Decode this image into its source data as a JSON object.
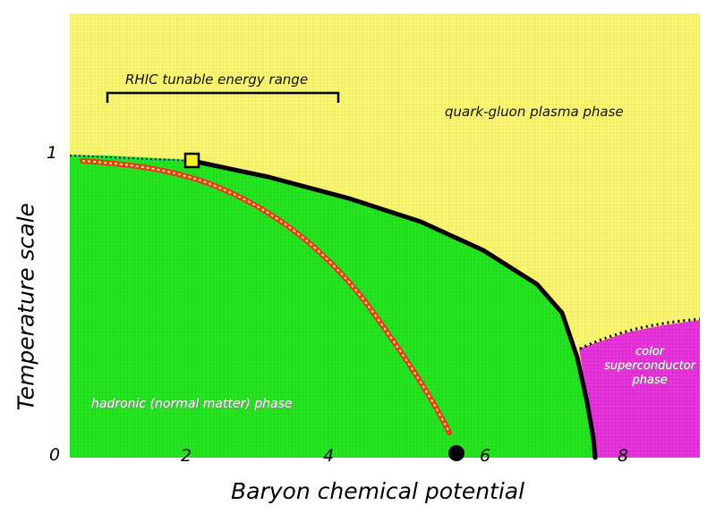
{
  "axes": {
    "xlabel": "Baryon chemical potential",
    "ylabel": "Temperature scale",
    "x_ticks": [
      "0",
      "2",
      "4",
      "6",
      "8"
    ],
    "y_ticks": [
      "1",
      "0"
    ]
  },
  "regions": {
    "qgp": "quark-gluon plasma phase",
    "hadronic": "hadronic (normal matter) phase",
    "color_sc": [
      "color",
      "superconductor",
      "phase"
    ]
  },
  "annotations": {
    "rhic": "RHIC tunable energy range"
  },
  "colors": {
    "qgp_fill": "#f8f36e",
    "hadronic_fill": "#22e21e",
    "color_sc_fill": "#e331d8",
    "boundary_line": "#000000",
    "freezeout_line": "#e53a25",
    "freezeout_dash": "#f2ee55",
    "critical_point_marker": "#f5ef2a"
  },
  "markers": {
    "critical_point": "open-square",
    "nuclear_matter_point": "filled-circle"
  }
}
